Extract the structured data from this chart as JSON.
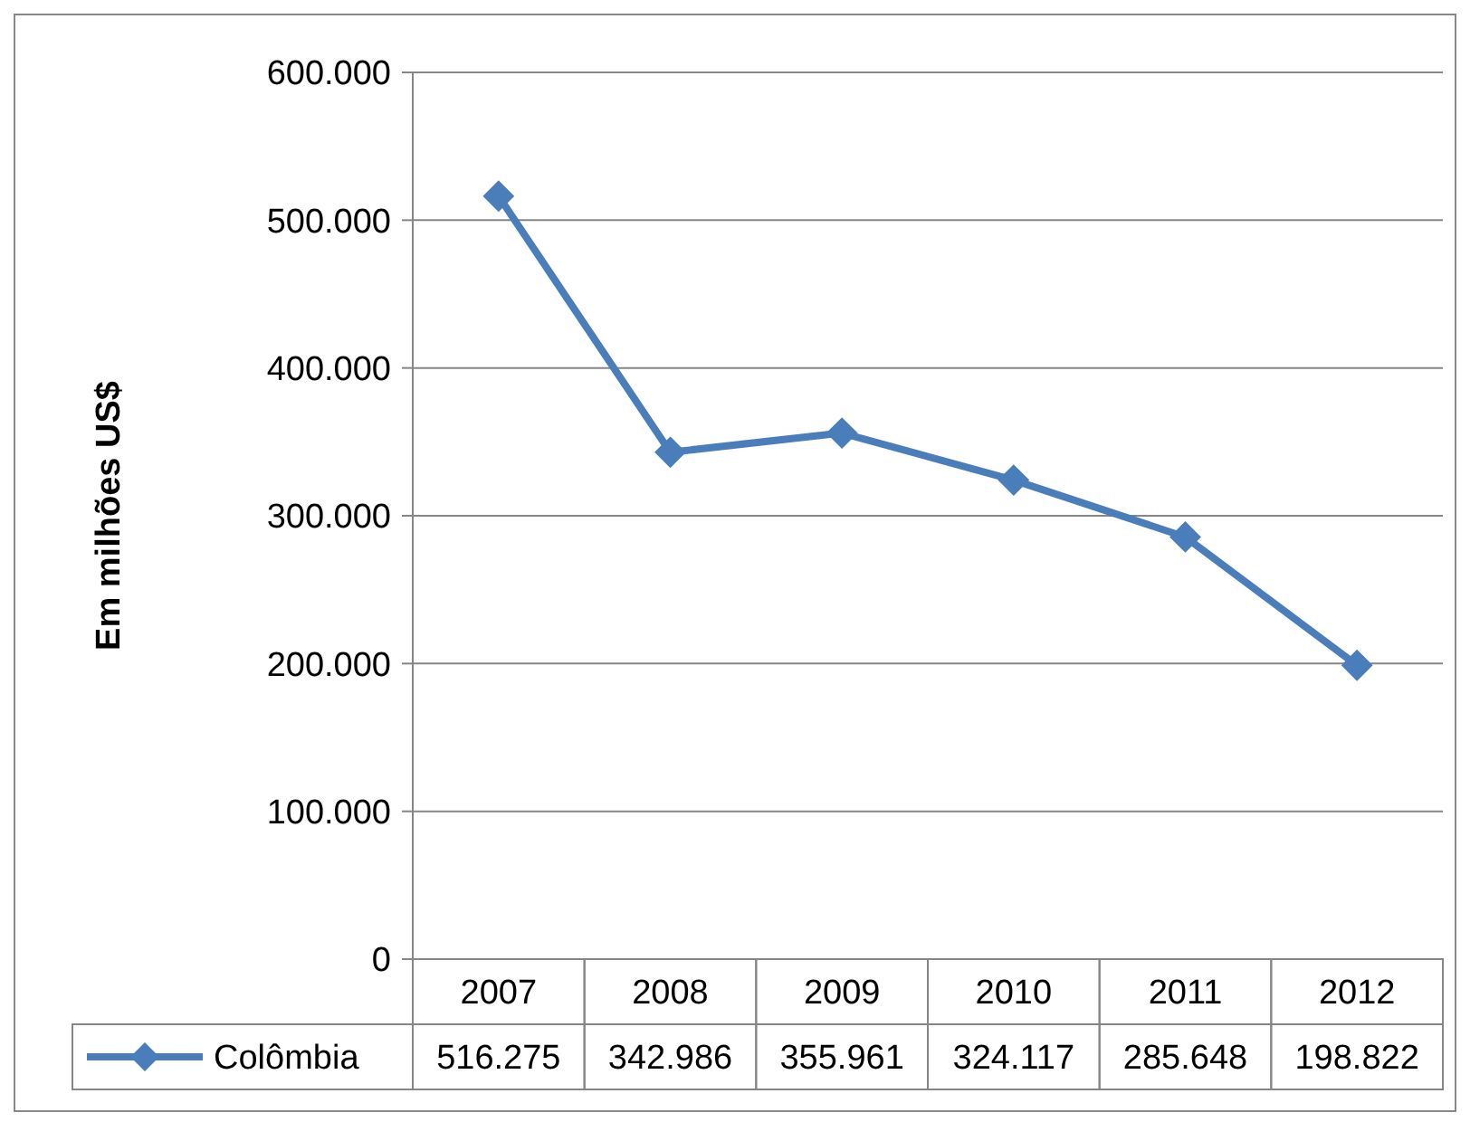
{
  "chart_data": {
    "type": "line",
    "ylabel": "Em milhões US$",
    "categories": [
      "2007",
      "2008",
      "2009",
      "2010",
      "2011",
      "2012"
    ],
    "series": [
      {
        "name": "Colômbia",
        "color": "#4a7ebb",
        "values": [
          516275,
          342986,
          355961,
          324117,
          285648,
          198822
        ],
        "value_labels": [
          "516.275",
          "342.986",
          "355.961",
          "324.117",
          "285.648",
          "198.822"
        ]
      }
    ],
    "ylim": [
      0,
      600000
    ],
    "yticks": [
      {
        "value": 0,
        "label": "0"
      },
      {
        "value": 100000,
        "label": "100.000"
      },
      {
        "value": 200000,
        "label": "200.000"
      },
      {
        "value": 300000,
        "label": "300.000"
      },
      {
        "value": 400000,
        "label": "400.000"
      },
      {
        "value": 500000,
        "label": "500.000"
      },
      {
        "value": 600000,
        "label": "600.000"
      }
    ],
    "grid": "y",
    "legend": "bottom",
    "marker": "diamond",
    "line_style": "solid"
  }
}
